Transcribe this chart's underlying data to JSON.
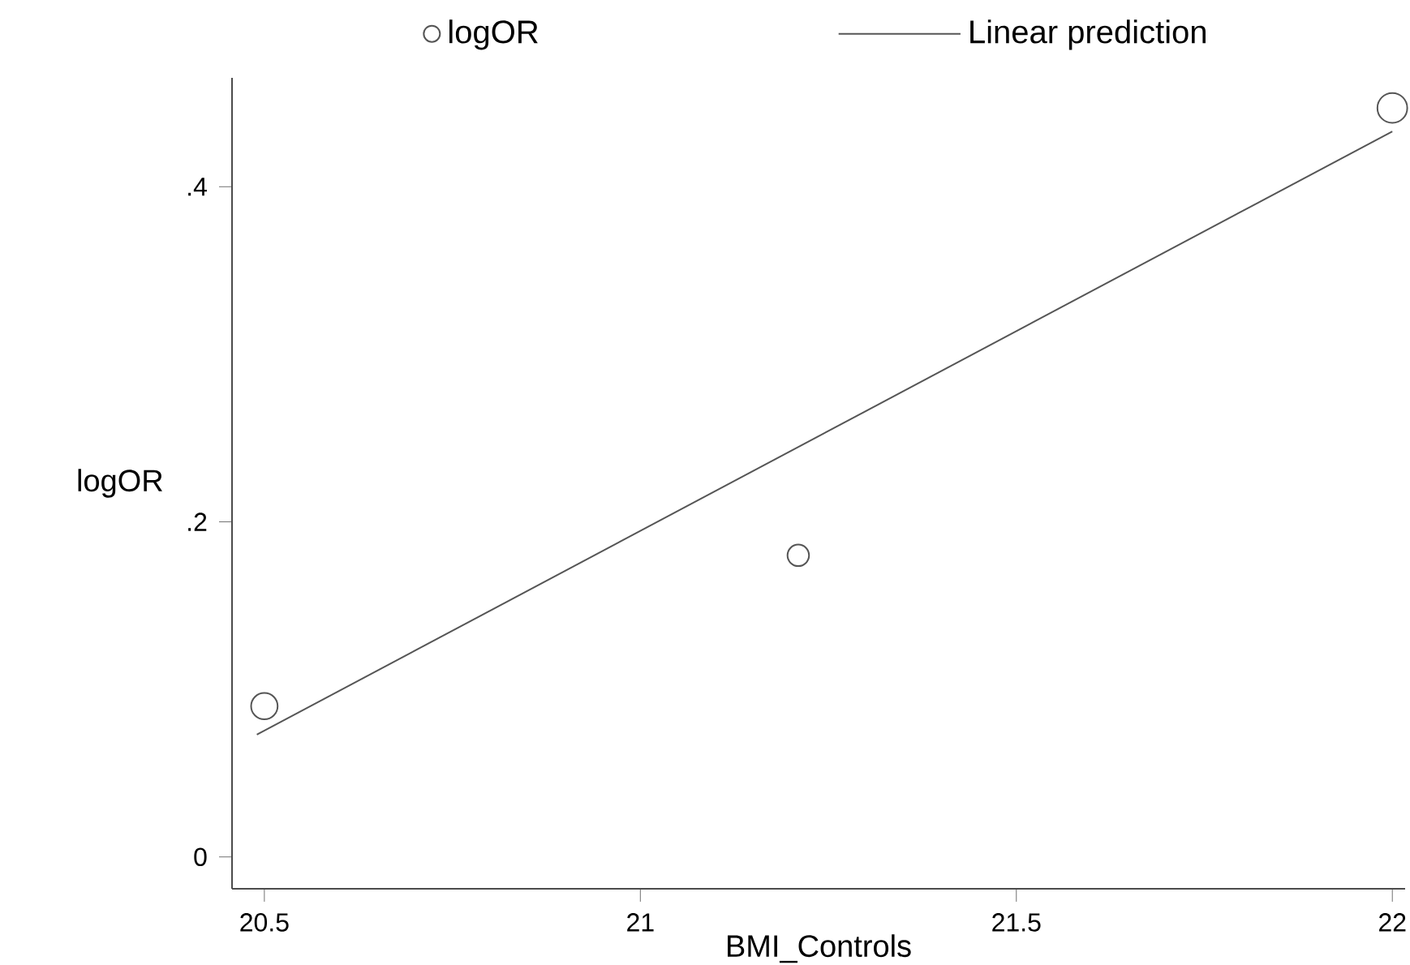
{
  "chart_data": {
    "type": "bubble",
    "xlabel": "BMI_Controls",
    "ylabel": "logOR",
    "series": [
      {
        "name": "logOR",
        "color": "#555555",
        "x": [
          20.5,
          21.21,
          22.0
        ],
        "values": [
          0.09,
          0.18,
          0.447
        ],
        "sizes": [
          0.79,
          0.52,
          1
        ]
      },
      {
        "name": "Linear prediction",
        "type": "line",
        "color": "#555555",
        "x": [
          20.49,
          22.0
        ],
        "values": [
          0.073,
          0.433
        ]
      }
    ],
    "xlim": [
      20.457,
      22.017
    ],
    "xticks": [
      20.5,
      21,
      21.5,
      22
    ],
    "ylim": [
      -0.019,
      0.465
    ],
    "yticks": [
      0,
      {
        "value": 0.2,
        "label": ".2"
      },
      {
        "value": 0.4,
        "label": ".4"
      }
    ],
    "grid": false,
    "legend": "top"
  }
}
